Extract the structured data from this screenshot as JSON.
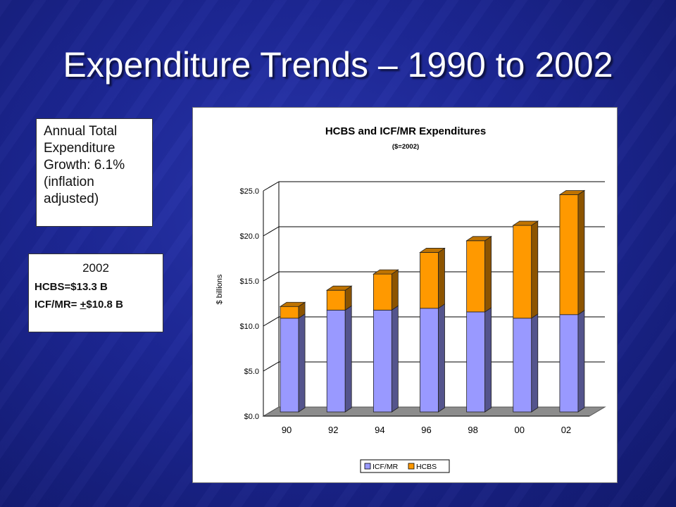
{
  "slide": {
    "title": "Expenditure Trends – 1990 to 2002"
  },
  "growth_note": {
    "lines": [
      "Annual Total",
      "Expenditure",
      "Growth: 6.1%",
      "(inflation",
      "adjusted)"
    ]
  },
  "summary_box": {
    "year": "2002",
    "hcbs_line": "HCBS=$13.3 B",
    "icf_prefix": "ICF/MR= ",
    "icf_underlined": "+",
    "icf_suffix": "$10.8 B"
  },
  "colors": {
    "background": "#1d2796",
    "icf_mr": "#9999ff",
    "hcbs": "#ff9900"
  },
  "chart_data": {
    "type": "bar",
    "stacked": true,
    "three_d": true,
    "title": "HCBS and ICF/MR Expenditures",
    "subtitle": "($=2002)",
    "xlabel": "",
    "ylabel": "$ billions",
    "categories": [
      "90",
      "92",
      "94",
      "96",
      "98",
      "00",
      "02"
    ],
    "series": [
      {
        "name": "ICF/MR",
        "color": "#9999ff",
        "values": [
          10.4,
          11.3,
          11.3,
          11.5,
          11.1,
          10.4,
          10.8
        ]
      },
      {
        "name": "HCBS",
        "color": "#ff9900",
        "values": [
          1.3,
          2.2,
          4.0,
          6.2,
          7.9,
          10.3,
          13.3
        ]
      }
    ],
    "ylim": [
      0,
      25
    ],
    "yticks": [
      0,
      5,
      10,
      15,
      20,
      25
    ],
    "ytick_labels": [
      "$0.0",
      "$5.0",
      "$10.0",
      "$15.0",
      "$20.0",
      "$25.0"
    ],
    "grid": true,
    "legend": "bottom"
  }
}
